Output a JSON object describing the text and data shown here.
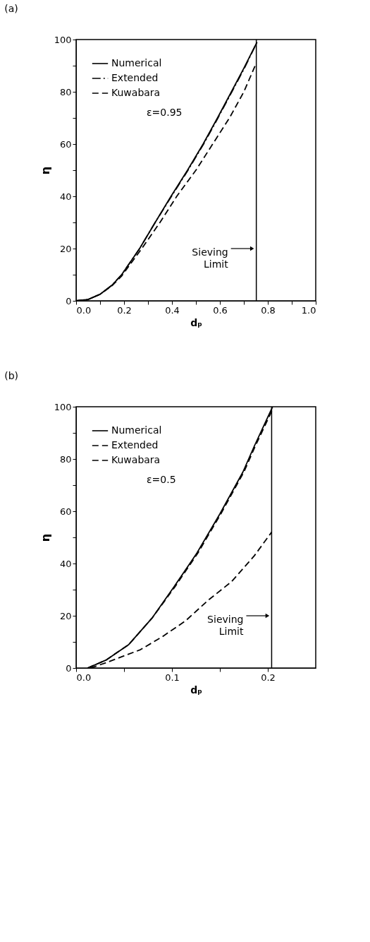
{
  "chart_data": [
    {
      "type": "line",
      "title": "(a)",
      "xlabel": "dₚ",
      "ylabel": "η",
      "xlim": [
        0,
        1
      ],
      "xticks": [
        {
          "value": 0,
          "label": "0.0"
        },
        {
          "value": 0.1,
          "label": null
        },
        {
          "value": 0.2,
          "label": "0.2"
        },
        {
          "value": 0.3,
          "label": null
        },
        {
          "value": 0.4,
          "label": "0.4"
        },
        {
          "value": 0.5,
          "label": null
        },
        {
          "value": 0.6,
          "label": "0.6"
        },
        {
          "value": 0.7,
          "label": null
        },
        {
          "value": 0.8,
          "label": "0.8"
        },
        {
          "value": 0.9,
          "label": null
        },
        {
          "value": 1,
          "label": "1.0"
        }
      ],
      "ylim": [
        0,
        100
      ],
      "yticks": [
        0,
        {
          "value": 10,
          "label": null
        },
        20,
        {
          "value": 30,
          "label": null
        },
        40,
        {
          "value": 50,
          "label": null
        },
        60,
        {
          "value": 70,
          "label": null
        },
        80,
        {
          "value": 90,
          "label": null
        },
        100
      ],
      "grid": false,
      "legend": "top left",
      "marker": "none",
      "series": [
        {
          "name": "Numerical",
          "color": "#000000",
          "line_style": "solid",
          "x": [
            0,
            0.05,
            0.1,
            0.15,
            0.19,
            0.265,
            0.33,
            0.396,
            0.465,
            0.53,
            0.59,
            0.648,
            0.7,
            0.755
          ],
          "values": [
            0,
            0.5,
            2.5,
            6,
            10,
            20,
            30,
            40,
            50,
            60,
            70,
            80,
            89,
            99
          ]
        },
        {
          "name": "Extended",
          "color": "#000000",
          "line_style": "dashdot",
          "x": [
            0,
            0.05,
            0.1,
            0.15,
            0.19,
            0.265,
            0.33,
            0.398,
            0.467,
            0.532,
            0.592,
            0.65,
            0.702,
            0.755
          ],
          "values": [
            0,
            0.5,
            2.5,
            6,
            10,
            20,
            30,
            40,
            50,
            60,
            70,
            80,
            89,
            99
          ]
        },
        {
          "name": "Kuwabara",
          "color": "#000000",
          "line_style": "dashed",
          "x": [
            0,
            0.05,
            0.1,
            0.15,
            0.19,
            0.274,
            0.35,
            0.42,
            0.5,
            0.57,
            0.64,
            0.7,
            0.752
          ],
          "values": [
            0,
            0.5,
            2.5,
            5.8,
            9.5,
            20,
            30,
            40,
            50,
            60,
            70,
            80,
            91
          ]
        }
      ],
      "ref_lines": [
        {
          "axis": "x",
          "value": 0.752,
          "label": "Sieving Limit",
          "color": "#000000",
          "line_style": "solid"
        }
      ],
      "annotations": [
        {
          "text": "ε=0.95"
        }
      ]
    },
    {
      "type": "line",
      "title": "(b)",
      "xlabel": "dₚ",
      "ylabel": "η",
      "xlim": [
        0,
        0.25
      ],
      "xticks": [
        {
          "value": 0,
          "label": "0.0"
        },
        {
          "value": 0.05,
          "label": null
        },
        {
          "value": 0.1,
          "label": "0.1"
        },
        {
          "value": 0.15,
          "label": null
        },
        {
          "value": 0.2,
          "label": "0.2"
        }
      ],
      "ylim": [
        0,
        100
      ],
      "yticks": [
        0,
        {
          "value": 10,
          "label": null
        },
        20,
        {
          "value": 30,
          "label": null
        },
        40,
        {
          "value": 50,
          "label": null
        },
        60,
        {
          "value": 70,
          "label": null
        },
        80,
        {
          "value": 90,
          "label": null
        },
        100
      ],
      "grid": false,
      "legend": "top left",
      "marker": "none",
      "series": [
        {
          "name": "Numerical",
          "color": "#000000",
          "line_style": "solid",
          "x": [
            0.012,
            0.031,
            0.055,
            0.079,
            0.102,
            0.126,
            0.15,
            0.174,
            0.186,
            0.205
          ],
          "values": [
            0,
            3,
            9,
            19,
            31,
            44,
            59,
            75,
            85,
            100
          ]
        },
        {
          "name": "Extended",
          "color": "#000000",
          "line_style": "dashed",
          "x": [
            0.012,
            0.031,
            0.055,
            0.079,
            0.103,
            0.127,
            0.151,
            0.175,
            0.187,
            0.205
          ],
          "values": [
            0,
            3,
            9,
            19,
            31,
            44,
            59,
            75,
            85,
            99
          ]
        },
        {
          "name": "Kuwabara",
          "color": "#000000",
          "line_style": "dashed",
          "x": [
            0.015,
            0.031,
            0.067,
            0.09,
            0.114,
            0.138,
            0.162,
            0.186,
            0.204
          ],
          "values": [
            0,
            2,
            7,
            12,
            18,
            26,
            33,
            43,
            52
          ]
        }
      ],
      "ref_lines": [
        {
          "axis": "x",
          "value": 0.204,
          "label": "Sieving Limit",
          "color": "#000000",
          "line_style": "solid"
        }
      ],
      "annotations": [
        {
          "text": "ε=0.5"
        }
      ]
    }
  ]
}
